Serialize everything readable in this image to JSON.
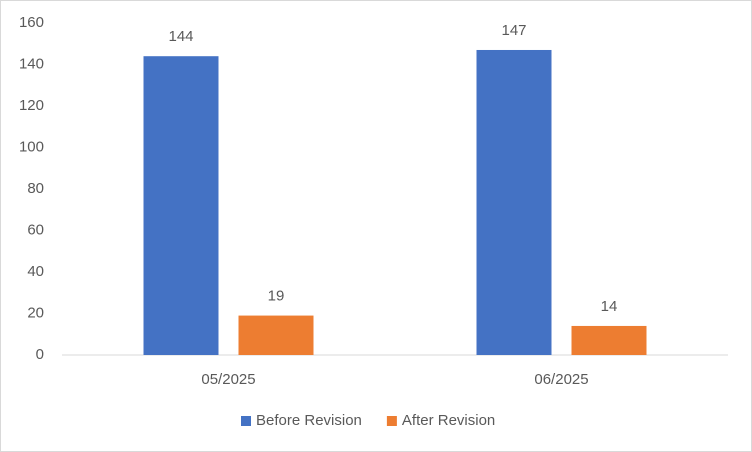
{
  "chart_data": {
    "type": "bar",
    "categories": [
      "05/2025",
      "06/2025"
    ],
    "series": [
      {
        "name": "Before Revision",
        "color": "#4472c4",
        "values": [
          144,
          147
        ]
      },
      {
        "name": "After Revision",
        "color": "#ed7d31",
        "values": [
          19,
          14
        ]
      }
    ],
    "ylim": [
      0,
      160
    ],
    "yticks": [
      0,
      20,
      40,
      60,
      80,
      100,
      120,
      140,
      160
    ],
    "grid": false,
    "legend": "bottom",
    "data_labels": true
  }
}
